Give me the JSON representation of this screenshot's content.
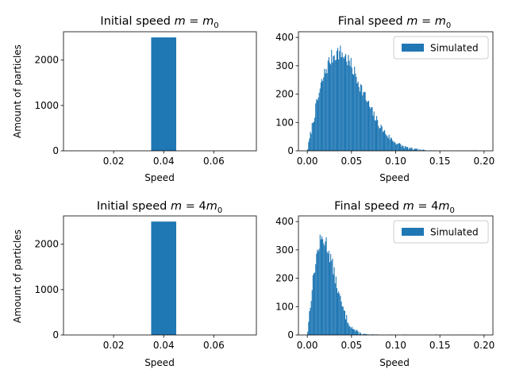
{
  "figure": {
    "width": 640,
    "height": 480
  },
  "bar_color": "#1f77b4",
  "chart_data": [
    {
      "type": "bar",
      "title": "Initial speed m = m0",
      "title_parts": [
        "Initial speed ",
        "m",
        " = ",
        "m",
        "0"
      ],
      "xlabel": "Speed",
      "ylabel": "Amount of particles",
      "xlim": [
        0.0,
        0.077
      ],
      "ylim": [
        0,
        2625
      ],
      "xticks": [
        0.02,
        0.04,
        0.06
      ],
      "xtick_labels": [
        "0.02",
        "0.04",
        "0.06"
      ],
      "yticks": [
        0,
        1000,
        2000
      ],
      "ytick_labels": [
        "0",
        "1000",
        "2000"
      ],
      "bins": [
        {
          "x0": 0.035,
          "x1": 0.045,
          "count": 2500
        }
      ],
      "legend": null
    },
    {
      "type": "bar",
      "title": "Final speed m = m0",
      "title_parts": [
        "Final speed ",
        "m",
        " = ",
        "m",
        "0"
      ],
      "xlabel": "Speed",
      "ylabel": "",
      "xlim": [
        -0.01,
        0.21
      ],
      "ylim": [
        0,
        420
      ],
      "xticks": [
        0.0,
        0.05,
        0.1,
        0.15,
        0.2
      ],
      "xtick_labels": [
        "0.00",
        "0.05",
        "0.10",
        "0.15",
        "0.20"
      ],
      "yticks": [
        0,
        100,
        200,
        300,
        400
      ],
      "ytick_labels": [
        "0",
        "100",
        "200",
        "300",
        "400"
      ],
      "hist": {
        "range": [
          0.0,
          0.2
        ],
        "nbins": 200,
        "mass_ratio": 1,
        "max_count": 385,
        "seed": 7
      },
      "legend": {
        "label": "Simulated",
        "loc": "upper right"
      }
    },
    {
      "type": "bar",
      "title": "Initial speed m = 4m0",
      "title_parts": [
        "Initial speed ",
        "m",
        " = 4",
        "m",
        "0"
      ],
      "xlabel": "Speed",
      "ylabel": "Amount of particles",
      "xlim": [
        0.0,
        0.077
      ],
      "ylim": [
        0,
        2625
      ],
      "xticks": [
        0.02,
        0.04,
        0.06
      ],
      "xtick_labels": [
        "0.02",
        "0.04",
        "0.06"
      ],
      "yticks": [
        0,
        1000,
        2000
      ],
      "ytick_labels": [
        "0",
        "1000",
        "2000"
      ],
      "bins": [
        {
          "x0": 0.035,
          "x1": 0.045,
          "count": 2500
        }
      ],
      "legend": null
    },
    {
      "type": "bar",
      "title": "Final speed m = 4m0",
      "title_parts": [
        "Final speed ",
        "m",
        " = 4",
        "m",
        "0"
      ],
      "xlabel": "Speed",
      "ylabel": "",
      "xlim": [
        -0.01,
        0.21
      ],
      "ylim": [
        0,
        420
      ],
      "xticks": [
        0.0,
        0.05,
        0.1,
        0.15,
        0.2
      ],
      "xtick_labels": [
        "0.00",
        "0.05",
        "0.10",
        "0.15",
        "0.20"
      ],
      "yticks": [
        0,
        100,
        200,
        300,
        400
      ],
      "ytick_labels": [
        "0",
        "100",
        "200",
        "300",
        "400"
      ],
      "hist": {
        "range": [
          0.0,
          0.2
        ],
        "nbins": 200,
        "mass_ratio": 4,
        "max_count": 375,
        "seed": 13
      },
      "legend": {
        "label": "Simulated",
        "loc": "upper right"
      }
    }
  ]
}
